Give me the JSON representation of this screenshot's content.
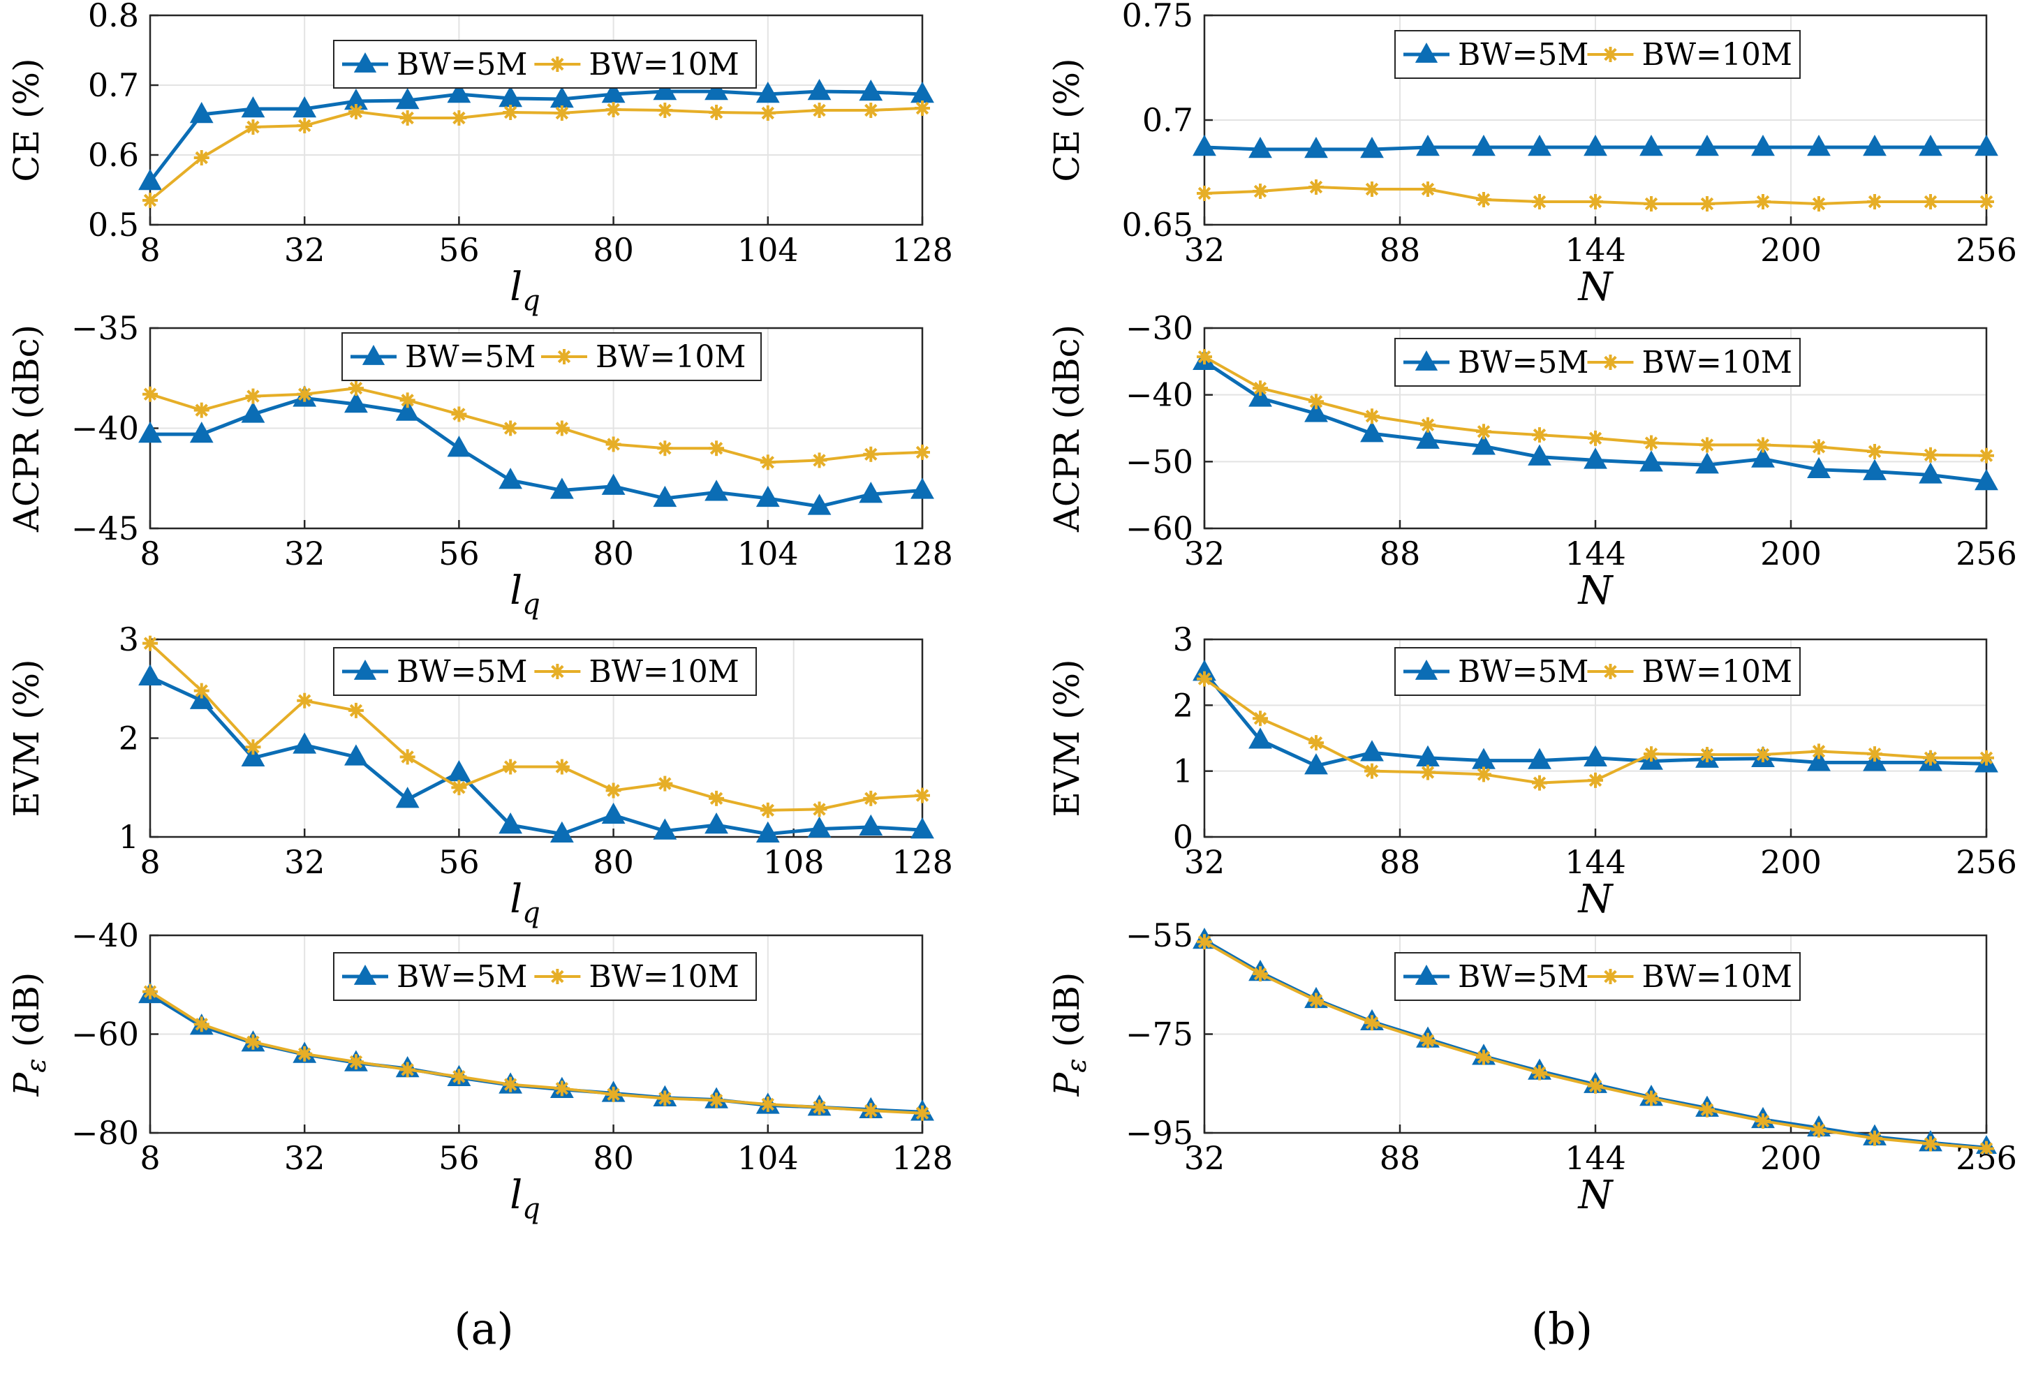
{
  "figure": {
    "labels": [
      "(a)",
      "(b)"
    ]
  },
  "colors": {
    "series5": "#0b6db5",
    "series10": "#e6ae27",
    "grid": "#e3e3e3",
    "axis": "#262626"
  },
  "chart_data": [
    {
      "id": "a1",
      "type": "line",
      "ylabel": "CE (%)",
      "xlabel_main": "l",
      "xlabel_sub": "q",
      "x": [
        8,
        16,
        24,
        32,
        40,
        48,
        56,
        64,
        72,
        80,
        88,
        96,
        104,
        112,
        120,
        128
      ],
      "xticks": [
        8,
        32,
        56,
        80,
        104,
        128
      ],
      "xlim": [
        8,
        128
      ],
      "yticks": [
        0.5,
        0.6,
        0.7,
        0.8
      ],
      "ytick_labels": [
        "0.5",
        "0.6",
        "0.7",
        "0.8"
      ],
      "ylim": [
        0.5,
        0.8
      ],
      "legend_position": "top-center",
      "series": [
        {
          "name": "BW=5M",
          "values": [
            0.562,
            0.658,
            0.666,
            0.666,
            0.677,
            0.678,
            0.687,
            0.681,
            0.68,
            0.687,
            0.691,
            0.691,
            0.687,
            0.691,
            0.69,
            0.687
          ]
        },
        {
          "name": "BW=10M",
          "values": [
            0.535,
            0.596,
            0.64,
            0.642,
            0.662,
            0.653,
            0.653,
            0.661,
            0.66,
            0.665,
            0.664,
            0.661,
            0.66,
            0.664,
            0.664,
            0.667
          ]
        }
      ]
    },
    {
      "id": "a2",
      "type": "line",
      "ylabel": "ACPR (dBc)",
      "xlabel_main": "l",
      "xlabel_sub": "q",
      "x": [
        8,
        16,
        24,
        32,
        40,
        48,
        56,
        64,
        72,
        80,
        88,
        96,
        104,
        112,
        120,
        128
      ],
      "xticks": [
        8,
        32,
        56,
        80,
        104,
        128
      ],
      "xlim": [
        8,
        128
      ],
      "yticks": [
        -45,
        -40,
        -35
      ],
      "ytick_labels": [
        "−45",
        "−40",
        "−35"
      ],
      "ylim": [
        -45,
        -35
      ],
      "legend_position": "top-center",
      "series": [
        {
          "name": "BW=5M",
          "values": [
            -40.3,
            -40.3,
            -39.3,
            -38.5,
            -38.8,
            -39.2,
            -41.0,
            -42.6,
            -43.1,
            -42.9,
            -43.5,
            -43.2,
            -43.5,
            -43.9,
            -43.3,
            -43.1
          ]
        },
        {
          "name": "BW=10M",
          "values": [
            -38.3,
            -39.1,
            -38.4,
            -38.3,
            -38.0,
            -38.6,
            -39.3,
            -40.0,
            -40.0,
            -40.8,
            -41.0,
            -41.0,
            -41.7,
            -41.6,
            -41.3,
            -41.2
          ]
        }
      ]
    },
    {
      "id": "a3",
      "type": "line",
      "ylabel": "EVM (%)",
      "xlabel_main": "l",
      "xlabel_sub": "q",
      "x": [
        8,
        16,
        24,
        32,
        40,
        48,
        56,
        64,
        72,
        80,
        88,
        96,
        104,
        112,
        120,
        128
      ],
      "xticks": [
        8,
        32,
        56,
        80,
        108,
        128
      ],
      "xlim": [
        8,
        128
      ],
      "yticks": [
        1,
        2,
        3
      ],
      "ytick_labels": [
        "1",
        "2",
        "3"
      ],
      "ylim": [
        1,
        3
      ],
      "legend_position": "top-center",
      "series": [
        {
          "name": "BW=5M",
          "values": [
            2.62,
            2.38,
            1.8,
            1.93,
            1.81,
            1.38,
            1.65,
            1.12,
            1.03,
            1.22,
            1.06,
            1.12,
            1.03,
            1.08,
            1.1,
            1.07
          ]
        },
        {
          "name": "BW=10M",
          "values": [
            2.96,
            2.48,
            1.91,
            2.38,
            2.28,
            1.81,
            1.5,
            1.71,
            1.71,
            1.47,
            1.54,
            1.39,
            1.27,
            1.28,
            1.39,
            1.42
          ]
        }
      ]
    },
    {
      "id": "a4",
      "type": "line",
      "ylabel": "Pε (dB)",
      "ylabel_main": "P",
      "ylabel_sub": "ε",
      "ylabel_rest": " (dB)",
      "xlabel_main": "l",
      "xlabel_sub": "q",
      "x": [
        8,
        16,
        24,
        32,
        40,
        48,
        56,
        64,
        72,
        80,
        88,
        96,
        104,
        112,
        120,
        128
      ],
      "xticks": [
        8,
        32,
        56,
        80,
        104,
        128
      ],
      "xlim": [
        8,
        128
      ],
      "yticks": [
        -80,
        -60,
        -40
      ],
      "ytick_labels": [
        "−80",
        "−60",
        "−40"
      ],
      "ylim": [
        -80,
        -40
      ],
      "legend_position": "top-center",
      "series": [
        {
          "name": "BW=5M",
          "values": [
            -52.0,
            -58.4,
            -61.8,
            -64.1,
            -65.8,
            -67.0,
            -68.8,
            -70.3,
            -71.2,
            -72.0,
            -72.9,
            -73.3,
            -74.4,
            -74.8,
            -75.3,
            -75.8
          ]
        },
        {
          "name": "BW=10M",
          "values": [
            -51.4,
            -58.0,
            -61.6,
            -64.0,
            -65.6,
            -67.2,
            -68.6,
            -70.2,
            -71.0,
            -72.2,
            -73.0,
            -73.4,
            -74.2,
            -74.8,
            -75.5,
            -76.0
          ]
        }
      ]
    },
    {
      "id": "b1",
      "type": "line",
      "ylabel": "CE (%)",
      "xlabel_main": "N",
      "xlabel_sub": "",
      "x": [
        32,
        48,
        64,
        80,
        96,
        112,
        128,
        144,
        160,
        176,
        192,
        208,
        224,
        240,
        256
      ],
      "xticks": [
        32,
        88,
        144,
        200,
        256
      ],
      "xlim": [
        32,
        256
      ],
      "yticks": [
        0.65,
        0.7,
        0.75
      ],
      "ytick_labels": [
        "0.65",
        "0.7",
        "0.75"
      ],
      "ylim": [
        0.65,
        0.75
      ],
      "legend_position": "top-center",
      "series": [
        {
          "name": "BW=5M",
          "values": [
            0.687,
            0.686,
            0.686,
            0.686,
            0.687,
            0.687,
            0.687,
            0.687,
            0.687,
            0.687,
            0.687,
            0.687,
            0.687,
            0.687,
            0.687
          ]
        },
        {
          "name": "BW=10M",
          "values": [
            0.665,
            0.666,
            0.668,
            0.667,
            0.667,
            0.662,
            0.661,
            0.661,
            0.66,
            0.66,
            0.661,
            0.66,
            0.661,
            0.661,
            0.661
          ]
        }
      ]
    },
    {
      "id": "b2",
      "type": "line",
      "ylabel": "ACPR (dBc)",
      "xlabel_main": "N",
      "xlabel_sub": "",
      "x": [
        32,
        48,
        64,
        80,
        96,
        112,
        128,
        144,
        160,
        176,
        192,
        208,
        224,
        240,
        256
      ],
      "xticks": [
        32,
        88,
        144,
        200,
        256
      ],
      "xlim": [
        32,
        256
      ],
      "yticks": [
        -60,
        -50,
        -40,
        -30
      ],
      "ytick_labels": [
        "−60",
        "−50",
        "−40",
        "−30"
      ],
      "ylim": [
        -60,
        -30
      ],
      "legend_position": "top-center",
      "series": [
        {
          "name": "BW=5M",
          "values": [
            -35.0,
            -40.5,
            -42.8,
            -45.8,
            -46.8,
            -47.7,
            -49.3,
            -49.8,
            -50.2,
            -50.5,
            -49.6,
            -51.2,
            -51.5,
            -52.0,
            -53.0
          ]
        },
        {
          "name": "BW=10M",
          "values": [
            -34.3,
            -39.0,
            -41.0,
            -43.2,
            -44.5,
            -45.5,
            -46.0,
            -46.5,
            -47.2,
            -47.5,
            -47.5,
            -47.8,
            -48.5,
            -49.0,
            -49.1
          ]
        }
      ]
    },
    {
      "id": "b3",
      "type": "line",
      "ylabel": "EVM (%)",
      "xlabel_main": "N",
      "xlabel_sub": "",
      "x": [
        32,
        48,
        64,
        80,
        96,
        112,
        128,
        144,
        160,
        176,
        192,
        208,
        224,
        240,
        256
      ],
      "xticks": [
        32,
        88,
        144,
        200,
        256
      ],
      "xlim": [
        32,
        256
      ],
      "yticks": [
        0,
        1,
        2,
        3
      ],
      "ytick_labels": [
        "0",
        "1",
        "2",
        "3"
      ],
      "ylim": [
        0,
        3
      ],
      "legend_position": "top-center",
      "series": [
        {
          "name": "BW=5M",
          "values": [
            2.5,
            1.47,
            1.08,
            1.28,
            1.2,
            1.16,
            1.16,
            1.2,
            1.15,
            1.18,
            1.19,
            1.13,
            1.13,
            1.13,
            1.11
          ]
        },
        {
          "name": "BW=10M",
          "values": [
            2.4,
            1.8,
            1.43,
            1.0,
            0.98,
            0.95,
            0.82,
            0.86,
            1.26,
            1.25,
            1.25,
            1.3,
            1.26,
            1.2,
            1.2
          ]
        }
      ]
    },
    {
      "id": "b4",
      "type": "line",
      "ylabel": "Pε (dB)",
      "ylabel_main": "P",
      "ylabel_sub": "ε",
      "ylabel_rest": " (dB)",
      "xlabel_main": "N",
      "xlabel_sub": "",
      "x": [
        32,
        48,
        64,
        80,
        96,
        112,
        128,
        144,
        160,
        176,
        192,
        208,
        224,
        240,
        256
      ],
      "xticks": [
        32,
        88,
        144,
        200,
        256
      ],
      "xlim": [
        32,
        256
      ],
      "yticks": [
        -95,
        -75,
        -55
      ],
      "ytick_labels": [
        "−95",
        "−75",
        "−55"
      ],
      "ylim": [
        -95,
        -55
      ],
      "legend_position": "top-center",
      "series": [
        {
          "name": "BW=5M",
          "values": [
            -56.0,
            -62.5,
            -68.0,
            -72.5,
            -76.0,
            -79.5,
            -82.5,
            -85.2,
            -87.8,
            -90.0,
            -92.3,
            -94.0,
            -95.8,
            -97.0,
            -98.0
          ]
        },
        {
          "name": "BW=10M",
          "values": [
            -56.3,
            -62.8,
            -68.2,
            -72.7,
            -76.3,
            -79.7,
            -82.8,
            -85.5,
            -88.0,
            -90.3,
            -92.6,
            -94.4,
            -96.1,
            -97.2,
            -98.2
          ]
        }
      ]
    }
  ]
}
